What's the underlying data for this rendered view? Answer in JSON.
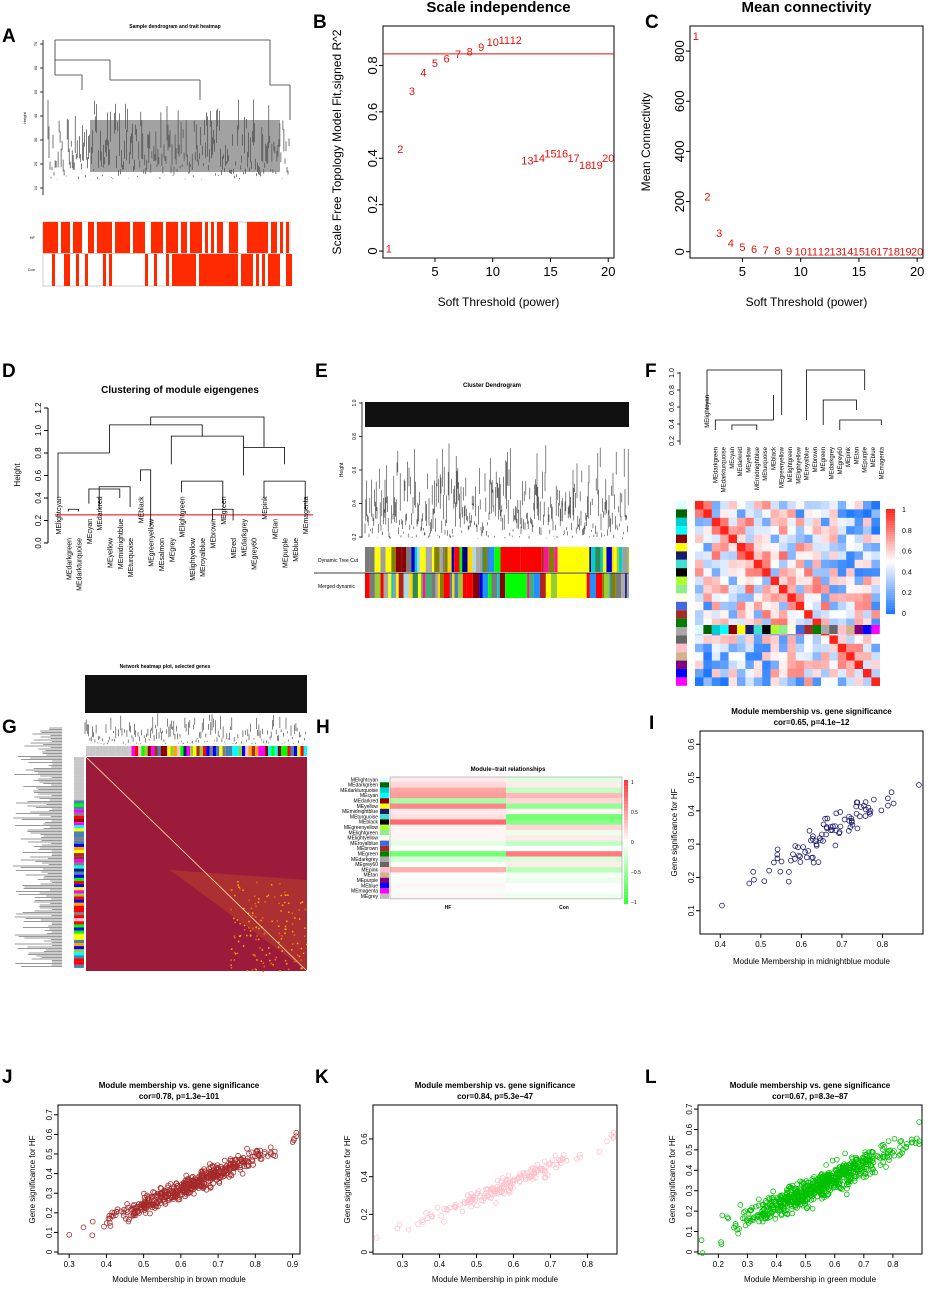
{
  "panel_labels": [
    "A",
    "B",
    "C",
    "D",
    "E",
    "F",
    "G",
    "H",
    "I",
    "J",
    "K",
    "L"
  ],
  "colors": {
    "red_text": "#e3120b",
    "dendro": "#1a1a1a",
    "heat_dark": "#9c1b3a"
  },
  "chart_data": [
    {
      "id": "A",
      "type": "dendrogram",
      "title": "Sample dendrogram and trait heatmap",
      "ylabel": "Height",
      "yticks": [
        "10",
        "20",
        "30",
        "40",
        "50",
        "60",
        "70"
      ],
      "trait_rows": [
        "HF",
        "Con"
      ]
    },
    {
      "id": "B",
      "type": "scatter",
      "title": "Scale independence",
      "xlabel": "Soft Threshold (power)",
      "ylabel": "Scale Free Topology Model Fit,signed R^2",
      "xlim": [
        0.5,
        20.5
      ],
      "ylim": [
        -0.03,
        0.97
      ],
      "xticks": [
        5,
        10,
        15,
        20
      ],
      "yticks": [
        0.0,
        0.2,
        0.4,
        0.6,
        0.8
      ],
      "cutoff": 0.85,
      "points": [
        [
          1,
          0.01
        ],
        [
          2,
          0.44
        ],
        [
          3,
          0.69
        ],
        [
          4,
          0.77
        ],
        [
          5,
          0.81
        ],
        [
          6,
          0.83
        ],
        [
          7,
          0.85
        ],
        [
          8,
          0.86
        ],
        [
          9,
          0.88
        ],
        [
          10,
          0.9
        ],
        [
          11,
          0.91
        ],
        [
          12,
          0.91
        ],
        [
          13,
          0.39
        ],
        [
          14,
          0.4
        ],
        [
          15,
          0.42
        ],
        [
          16,
          0.42
        ],
        [
          17,
          0.4
        ],
        [
          18,
          0.37
        ],
        [
          19,
          0.37
        ],
        [
          20,
          0.4
        ]
      ]
    },
    {
      "id": "C",
      "type": "scatter",
      "title": "Mean connectivity",
      "xlabel": "Soft Threshold (power)",
      "ylabel": "Mean Connectivity",
      "xlim": [
        0.5,
        20.5
      ],
      "ylim": [
        -25,
        900
      ],
      "xticks": [
        5,
        10,
        15,
        20
      ],
      "yticks": [
        0,
        200,
        400,
        600,
        800
      ],
      "points": [
        [
          1,
          860
        ],
        [
          2,
          220
        ],
        [
          3,
          75
        ],
        [
          4,
          35
        ],
        [
          5,
          18
        ],
        [
          6,
          10
        ],
        [
          7,
          6
        ],
        [
          8,
          4
        ],
        [
          9,
          2
        ],
        [
          10,
          1
        ],
        [
          11,
          1
        ],
        [
          12,
          1
        ],
        [
          13,
          1
        ],
        [
          14,
          0
        ],
        [
          15,
          0
        ],
        [
          16,
          0
        ],
        [
          17,
          0
        ],
        [
          18,
          0
        ],
        [
          19,
          0
        ],
        [
          20,
          0
        ]
      ]
    },
    {
      "id": "D",
      "type": "dendrogram",
      "title": "Clustering of module eigengenes",
      "ylabel": "Height",
      "ylim": [
        0,
        1.2
      ],
      "yticks": [
        0.0,
        0.2,
        0.4,
        0.6,
        0.8,
        1.0,
        1.2
      ],
      "cut_height": 0.25,
      "leaves": [
        "MElightcyan",
        "MEdarkgreen",
        "MEdarkturquoise",
        "MEcyan",
        "MEdarkred",
        "MEyellow",
        "MEmidnightblue",
        "MEturquoise",
        "MEblack",
        "MEgreenyellow",
        "MEsalmon",
        "MEgrey",
        "MElightgreen",
        "MElightyellow",
        "MEroyalblue",
        "MEbrown",
        "MEgreen",
        "MEred",
        "MEdarkgrey",
        "MEgrey60",
        "MEpink",
        "MEtan",
        "MEpurple",
        "MEblue",
        "MEmagenta"
      ]
    },
    {
      "id": "E",
      "type": "dendrogram",
      "title": "Cluster Dendrogram",
      "ylabel": "Height",
      "yticks": [
        "0.2",
        "0.4",
        "0.6",
        "0.8",
        "1.0"
      ],
      "color_rows": [
        "Dynamic Tree Cut",
        "Merged dynamic"
      ]
    },
    {
      "id": "F",
      "type": "heatmap",
      "yticks": [
        "0.2",
        "0.4",
        "0.6",
        "0.8",
        "1.0"
      ],
      "leaves": [
        "MElightcyan",
        "MEdarkgreen",
        "MEdarkturquoise",
        "MEcyan",
        "MEdarkred",
        "MEyellow",
        "MEmidnightblue",
        "MEturquoise",
        "MEblack",
        "MEgreenyellow",
        "MElightgreen",
        "MElightyellow",
        "MEroyalblue",
        "MEbrown",
        "MEgreen",
        "MEdarkgrey",
        "MEgrey60",
        "MEpink",
        "MEtan",
        "MEpurple",
        "MEblue",
        "MEmagenta"
      ],
      "colorbar": [
        "0",
        "0.2",
        "0.4",
        "0.6",
        "0.8",
        "1"
      ]
    },
    {
      "id": "G",
      "type": "heatmap",
      "title": "Network heatmap plot, selected genes"
    },
    {
      "id": "H",
      "type": "heatmap",
      "title": "Module−trait relationships",
      "rows": [
        "MElightcyan",
        "MEdarkgreen",
        "MEdarkturquoise",
        "MEcyan",
        "MEdarkred",
        "MEyellow",
        "MEmidnightblue",
        "MEturquoise",
        "MEblack",
        "MEgreenyellow",
        "MElightgreen",
        "MElightyellow",
        "MEroyalblue",
        "MEbrown",
        "MEgreen",
        "MEdarkgrey",
        "MEgrey60",
        "MEpink",
        "MEtan",
        "MEpurple",
        "MEblue",
        "MEmagenta",
        "MEgrey"
      ],
      "columns": [
        "HF",
        "Con"
      ],
      "values": [
        0.1,
        0.15,
        0.2,
        -0.1,
        0.45,
        0.3,
        0.5,
        -0.35,
        -0.45,
        -0.2,
        0.6,
        0.55,
        0.1,
        -0.05,
        0.15,
        0.7,
        0.75,
        0.6,
        0.05,
        -0.2,
        0.05,
        0.1,
        0.05,
        -0.1,
        -0.15,
        0.3,
        0.0,
        0.0,
        -0.7,
        -0.65,
        -0.2,
        0.2,
        -0.05,
        -0.1,
        0.4,
        0.35,
        0.0,
        0.05,
        -0.05,
        0.1,
        0.05,
        0.0,
        -0.05,
        0.0,
        0.05,
        0.1
      ],
      "colorbar": [
        "1",
        "0.5",
        "0",
        "−0.5",
        "−1"
      ]
    },
    {
      "id": "I",
      "type": "scatter",
      "title": "Module membership vs. gene significance",
      "subtitle": "cor=0.65, p=4.1e−12",
      "xlabel": "Module Membership in midnightblue module",
      "ylabel": "Gene significance for HF",
      "xlim": [
        0.35,
        0.9
      ],
      "ylim": [
        0.03,
        0.64
      ],
      "xticks": [
        0.4,
        0.5,
        0.6,
        0.7,
        0.8
      ],
      "yticks": [
        0.1,
        0.2,
        0.3,
        0.4,
        0.5,
        0.6
      ],
      "color": "#191970",
      "n": 90,
      "cor": 0.65
    },
    {
      "id": "J",
      "type": "scatter",
      "title": "Module membership vs. gene significance",
      "subtitle": "cor=0.78, p=1.3e−101",
      "xlabel": "Module Membership in brown module",
      "ylabel": "Gene significance for HF",
      "xlim": [
        0.27,
        0.92
      ],
      "ylim": [
        -0.01,
        0.75
      ],
      "xticks": [
        0.3,
        0.4,
        0.5,
        0.6,
        0.7,
        0.8,
        0.9
      ],
      "yticks": [
        0.0,
        0.1,
        0.2,
        0.3,
        0.4,
        0.5,
        0.6,
        0.7
      ],
      "color": "#a52a2a",
      "n": 500,
      "cor": 0.78
    },
    {
      "id": "K",
      "type": "scatter",
      "title": "Module membership vs. gene significance",
      "subtitle": "cor=0.84, p=5.3e−47",
      "xlabel": "Module Membership in pink module",
      "ylabel": "Gene significance for HF",
      "xlim": [
        0.22,
        0.88
      ],
      "ylim": [
        -0.01,
        0.78
      ],
      "xticks": [
        0.3,
        0.4,
        0.5,
        0.6,
        0.7,
        0.8
      ],
      "yticks": [
        0.0,
        0.2,
        0.4,
        0.6
      ],
      "color": "#ffc0cb",
      "n": 180,
      "cor": 0.84
    },
    {
      "id": "L",
      "type": "scatter",
      "title": "Module membership vs. gene significance",
      "subtitle": "cor=0.67, p=8.3e−87",
      "xlabel": "Module Membership in green module",
      "ylabel": "Gene significance for HF",
      "xlim": [
        0.13,
        0.9
      ],
      "ylim": [
        -0.01,
        0.72
      ],
      "xticks": [
        0.2,
        0.3,
        0.4,
        0.5,
        0.6,
        0.7,
        0.8
      ],
      "yticks": [
        0.0,
        0.1,
        0.2,
        0.3,
        0.4,
        0.5,
        0.6,
        0.7
      ],
      "color": "#00c000",
      "n": 700,
      "cor": 0.67
    }
  ]
}
